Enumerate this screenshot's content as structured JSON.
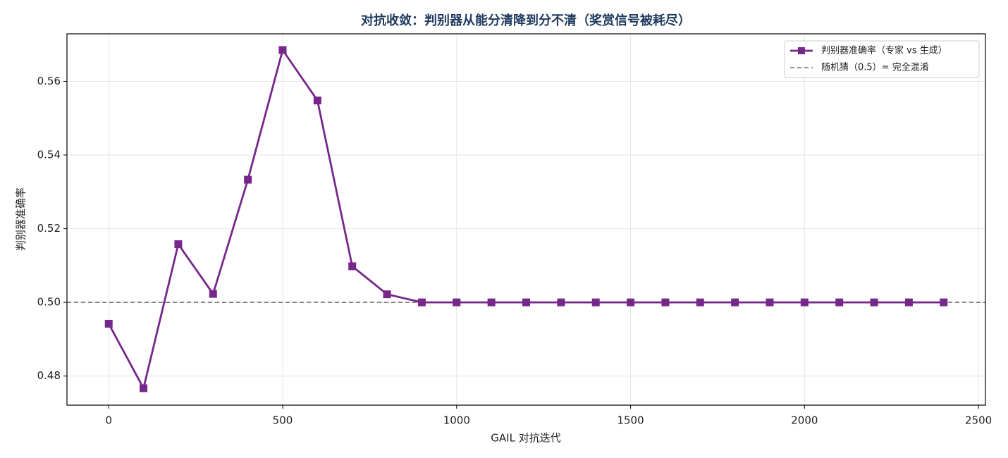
{
  "chart_data": {
    "type": "line",
    "title": "对抗收敛：判别器从能分清降到分不清（奖赏信号被耗尽）",
    "x_label": "GAIL 对抗迭代",
    "y_label": "判别器准确率",
    "x": [
      0,
      100,
      200,
      300,
      400,
      500,
      600,
      700,
      800,
      900,
      1000,
      1100,
      1200,
      1300,
      1400,
      1500,
      1600,
      1700,
      1800,
      1900,
      2000,
      2100,
      2200,
      2300,
      2400
    ],
    "series": [
      {
        "name": "判别器准确率（专家 vs 生成）",
        "color": "#76278a",
        "marker": "square",
        "values": [
          0.4942,
          0.4767,
          0.5158,
          0.5023,
          0.5333,
          0.5685,
          0.5548,
          0.5098,
          0.5022,
          0.5,
          0.5,
          0.5,
          0.5,
          0.5,
          0.5,
          0.5,
          0.5,
          0.5,
          0.5,
          0.5,
          0.5,
          0.5,
          0.5,
          0.5,
          0.5
        ]
      }
    ],
    "reference_line": {
      "name": "随机猜（0.5）= 完全混淆",
      "value": 0.5,
      "color": "#808080",
      "style": "dashed"
    },
    "xlim": [
      -120,
      2520
    ],
    "ylim": [
      0.4721,
      0.5729
    ],
    "xticks": [
      0,
      500,
      1000,
      1500,
      2000,
      2500
    ],
    "yticks": [
      0.48,
      {
        "value": 0.5,
        "label": "0.50"
      },
      0.52,
      0.54,
      0.56
    ],
    "grid": true,
    "legend": "upper right"
  }
}
